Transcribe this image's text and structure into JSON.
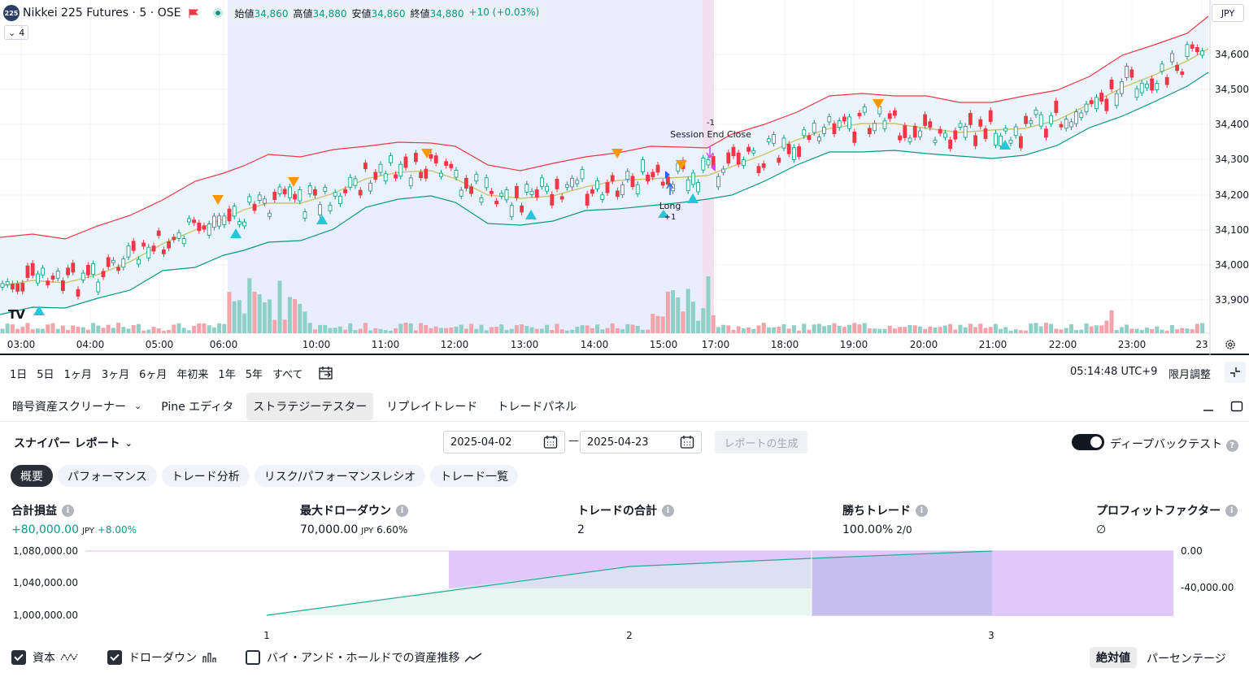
{
  "header": {
    "symbol_badge": "225",
    "symbol": "Nikkei 225 Futures · 5 · OSE",
    "ohlc": [
      {
        "k": "始値",
        "v": "34,860"
      },
      {
        "k": "高値",
        "v": "34,880"
      },
      {
        "k": "安値",
        "v": "34,860"
      },
      {
        "k": "終値",
        "v": "34,880"
      },
      {
        "k": "",
        "v": "+10 (+0.03%)"
      }
    ],
    "study_count": "4",
    "currency": "JPY",
    "logo": "TV"
  },
  "chart": {
    "price_ticks": [
      "34,600",
      "34,500",
      "34,400",
      "34,300",
      "34,200",
      "34,100",
      "34,000",
      "33,900"
    ],
    "time_ticks": [
      "03:00",
      "04:00",
      "05:00",
      "06:00",
      "10:00",
      "11:00",
      "12:00",
      "13:00",
      "14:00",
      "15:00",
      "17:00",
      "18:00",
      "19:00",
      "20:00",
      "21:00",
      "22:00",
      "23:00",
      "23"
    ],
    "annotations": {
      "session_end": "Session End Close",
      "session_qty": "-1",
      "long_label": "Long",
      "long_qty": "+1"
    },
    "colors": {
      "up": "#089981",
      "down": "#f23645",
      "band_upper": "#f23645",
      "band_lower": "#089981",
      "basis": "#c9c46b",
      "session_bg": "#e8edff",
      "marker_up": "#26c6da",
      "marker_down": "#ff9800"
    }
  },
  "range_bar": {
    "ranges": [
      "1日",
      "5日",
      "1ヶ月",
      "3ヶ月",
      "6ヶ月",
      "年初来",
      "1年",
      "5年",
      "すべて"
    ],
    "clock": "05:14:48 UTC+9",
    "adjust": "限月調整"
  },
  "panel_tabs": [
    {
      "label": "暗号資産スクリーナー",
      "dropdown": true
    },
    {
      "label": "Pine エディタ"
    },
    {
      "label": "ストラテジーテスター",
      "active": true
    },
    {
      "label": "リプレイトレード"
    },
    {
      "label": "トレードパネル"
    }
  ],
  "report": {
    "title": "スナイパー レポート",
    "date_from": "2025-04-02",
    "date_to": "2025-04-23",
    "dash": "—",
    "generate": "レポートの生成",
    "deep_backtest": "ディープバックテスト"
  },
  "sub_tabs": [
    {
      "label": "概要",
      "active": true
    },
    {
      "label": "パフォーマンス"
    },
    {
      "label": "トレード分析"
    },
    {
      "label": "リスク/パフォーマンスレシオ"
    },
    {
      "label": "トレード一覧"
    }
  ],
  "metrics": {
    "net_profit": {
      "label": "合計損益",
      "value": "+80,000.00",
      "unit": "JPY",
      "pct": "+8.00%"
    },
    "max_dd": {
      "label": "最大ドローダウン",
      "value": "70,000.00",
      "unit": "JPY",
      "pct": "6.60%"
    },
    "total_trades": {
      "label": "トレードの合計",
      "value": "2"
    },
    "win_trades": {
      "label": "勝ちトレード",
      "value": "100.00%",
      "sub": "2/0"
    },
    "profit_factor": {
      "label": "プロフィットファクター",
      "value": "∅"
    }
  },
  "equity_chart": {
    "left_ticks": [
      "1,080,000.00",
      "1,040,000.00",
      "1,000,000.00"
    ],
    "right_ticks": [
      "0.00",
      "-40,000.00"
    ],
    "x_ticks": [
      "1",
      "2",
      "3"
    ]
  },
  "bottom": {
    "equity": "資本",
    "drawdown": "ドローダウン",
    "buyhold": "バイ・アンド・ホールドでの資産推移",
    "absolute": "絶対値",
    "percent": "パーセンテージ"
  }
}
